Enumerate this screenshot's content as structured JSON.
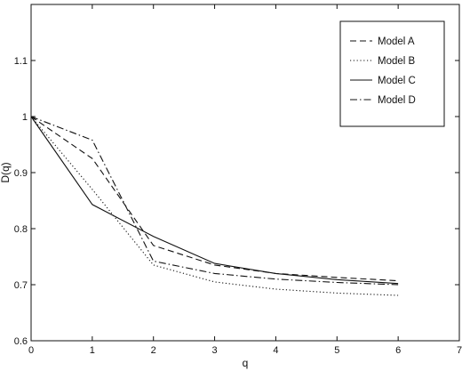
{
  "chart_data": {
    "type": "line",
    "xlabel": "q",
    "ylabel": "D(q)",
    "xlim": [
      0,
      7
    ],
    "ylim": [
      0.6,
      1.2
    ],
    "x_ticks": [
      "0",
      "1",
      "2",
      "3",
      "4",
      "5",
      "6",
      "7"
    ],
    "y_ticks": [
      "0.6",
      "0.7",
      "0.8",
      "0.9",
      "1",
      "1.1"
    ],
    "grid": false,
    "legend_position": "top-right",
    "x": [
      0,
      1,
      2,
      3,
      4,
      5,
      6
    ],
    "series": [
      {
        "name": "Model A",
        "style": "dashed",
        "values": [
          1.0,
          0.925,
          0.77,
          0.735,
          0.72,
          0.713,
          0.707
        ]
      },
      {
        "name": "Model B",
        "style": "dotted",
        "values": [
          1.0,
          0.87,
          0.735,
          0.705,
          0.692,
          0.685,
          0.681
        ]
      },
      {
        "name": "Model C",
        "style": "solid",
        "values": [
          1.0,
          0.843,
          0.786,
          0.738,
          0.72,
          0.709,
          0.702
        ]
      },
      {
        "name": "Model D",
        "style": "dashdot",
        "values": [
          1.0,
          0.958,
          0.742,
          0.72,
          0.71,
          0.704,
          0.7
        ]
      }
    ]
  },
  "colors": {
    "line": "#111111",
    "background": "#ffffff"
  }
}
